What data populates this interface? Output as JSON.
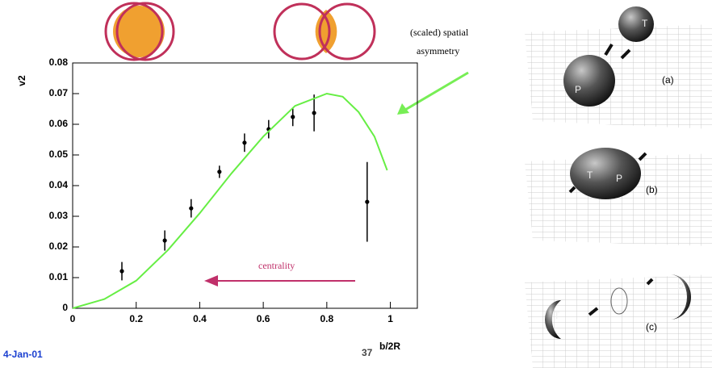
{
  "chart_data": {
    "type": "scatter",
    "xlabel": "b/2R",
    "ylabel": "v2",
    "xlim": [
      0,
      1.085
    ],
    "ylim": [
      0,
      0.08
    ],
    "xticks": [
      0,
      0.2,
      0.4,
      0.6,
      0.8,
      1
    ],
    "yticks": [
      0,
      0.01,
      0.02,
      0.03,
      0.04,
      0.05,
      0.06,
      0.07,
      0.08
    ],
    "series": [
      {
        "type": "scatter",
        "color": "#000000",
        "x": [
          0.155,
          0.29,
          0.373,
          0.462,
          0.541,
          0.617,
          0.693,
          0.76,
          0.927
        ],
        "values": [
          0.0121,
          0.0221,
          0.0326,
          0.0445,
          0.054,
          0.0584,
          0.0624,
          0.0637,
          0.0347
        ],
        "errors": [
          0.003,
          0.0033,
          0.003,
          0.002,
          0.003,
          0.003,
          0.003,
          0.006,
          0.013
        ]
      },
      {
        "type": "line",
        "color": "#66ee44",
        "x": [
          0,
          0.1,
          0.2,
          0.3,
          0.4,
          0.5,
          0.6,
          0.7,
          0.8,
          0.85,
          0.9,
          0.95,
          0.99
        ],
        "values": [
          0,
          0.003,
          0.009,
          0.019,
          0.031,
          0.044,
          0.056,
          0.066,
          0.07,
          0.069,
          0.064,
          0.056,
          0.045
        ]
      }
    ],
    "annotations": [
      "(scaled) spatial",
      "asymmetry",
      "centrality"
    ]
  },
  "footer": {
    "date": "4-Jan-01",
    "page": "37"
  },
  "panels": {
    "labels": [
      "(a)",
      "(b)",
      "(c)"
    ],
    "nuclei": [
      "T",
      "P"
    ]
  }
}
